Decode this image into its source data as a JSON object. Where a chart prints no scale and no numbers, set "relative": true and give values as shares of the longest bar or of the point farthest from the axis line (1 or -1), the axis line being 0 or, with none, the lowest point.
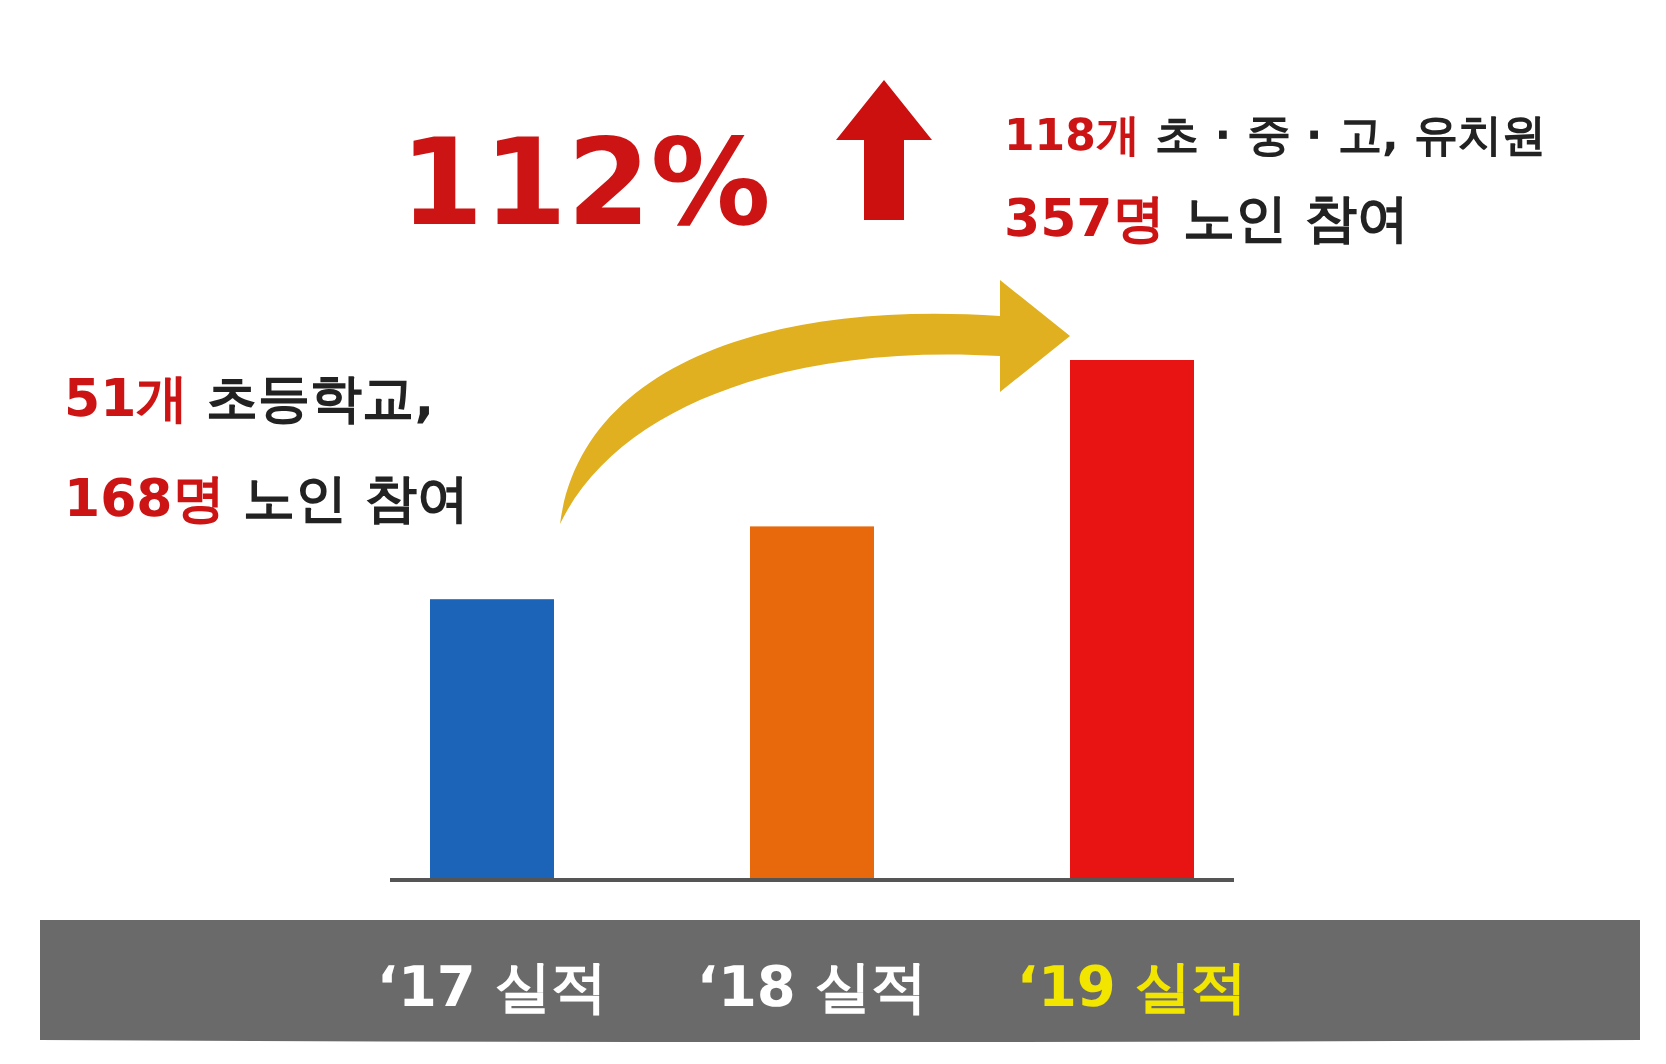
{
  "chart_data": {
    "type": "bar",
    "relative": true,
    "categories": [
      "‘17 실적",
      "‘18 실적",
      "‘19 실적"
    ],
    "values": [
      0.54,
      0.68,
      1
    ],
    "colors": [
      "#1c64b8",
      "#e8680c",
      "#e81414"
    ],
    "annotations": [
      "112%",
      "118개 초 · 중 · 고, 유치원",
      "357명 노인 참여",
      "51개 초등학교,",
      "168명 노인 참여"
    ]
  }
}
